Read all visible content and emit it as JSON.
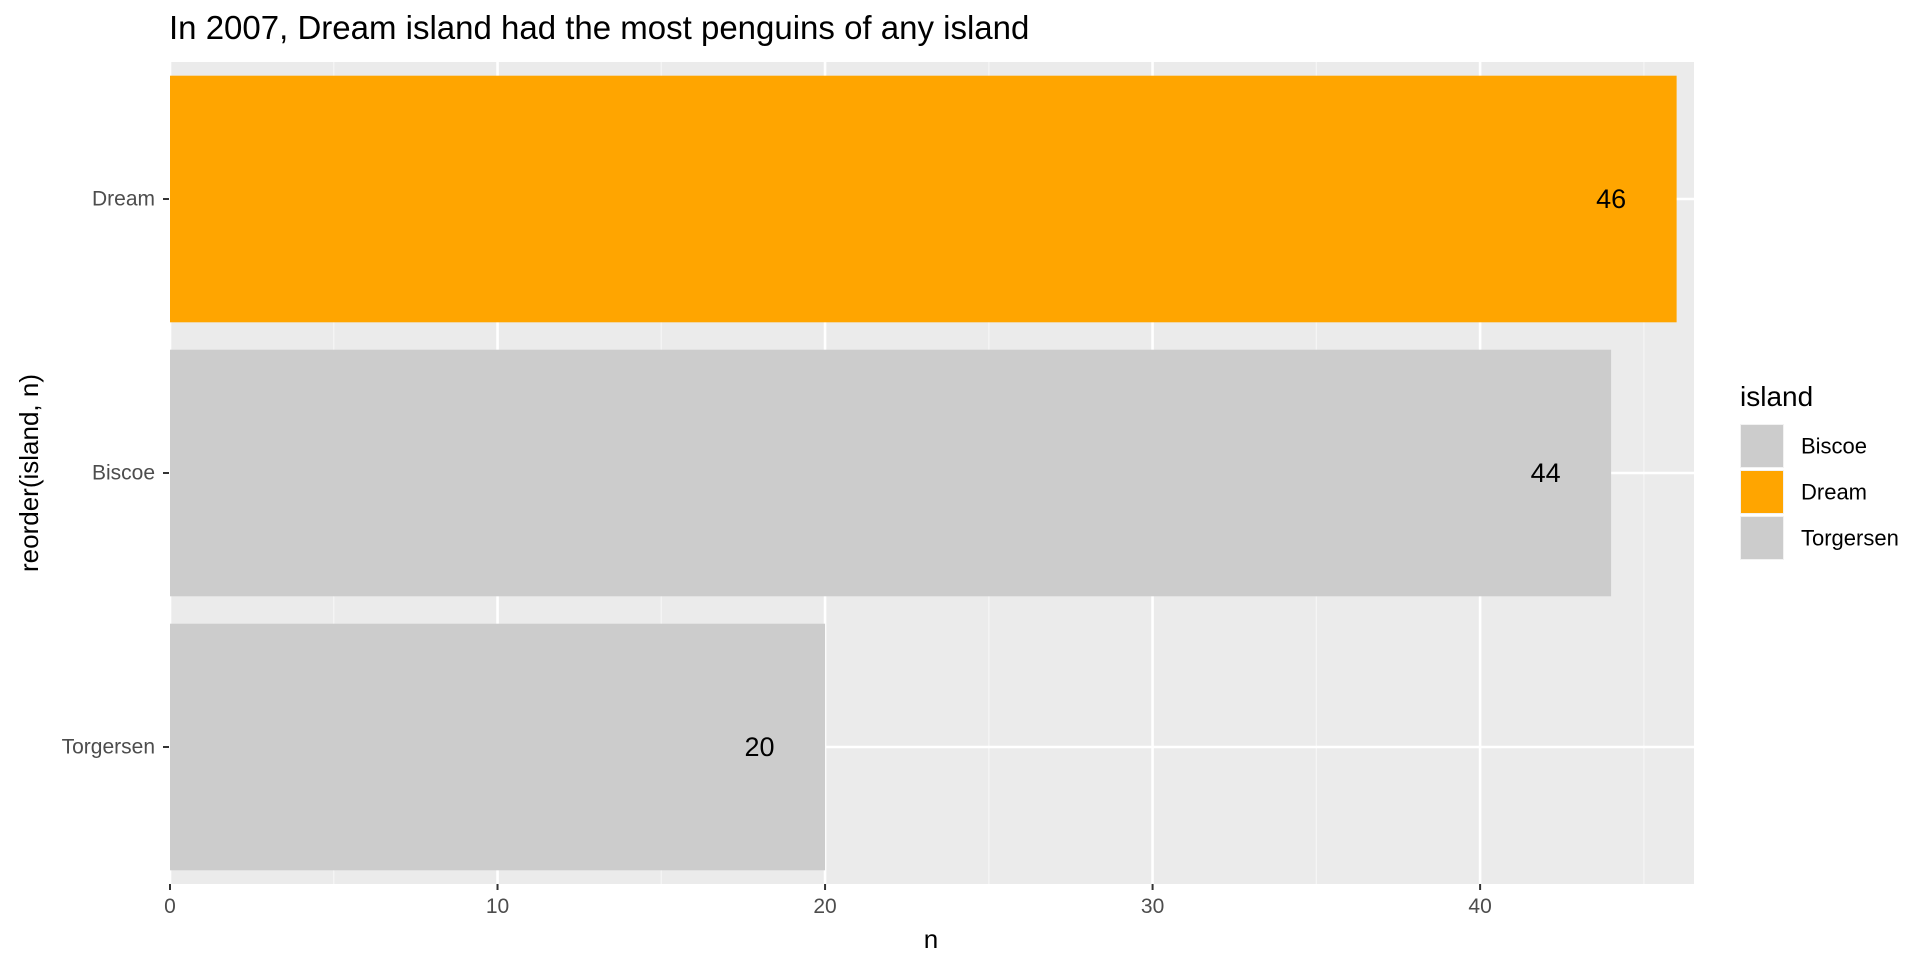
{
  "chart_data": {
    "type": "bar",
    "orientation": "horizontal",
    "title": "In 2007, Dream island had the most penguins of any island",
    "xlabel": "n",
    "ylabel": "reorder(island, n)",
    "categories": [
      "Torgersen",
      "Biscoe",
      "Dream"
    ],
    "values": [
      20,
      44,
      46
    ],
    "bar_labels": [
      "20",
      "44",
      "46"
    ],
    "bar_colors": [
      "#cccccc",
      "#cccccc",
      "#ffa500"
    ],
    "xlim": [
      0,
      46.5
    ],
    "x_ticks": [
      0,
      10,
      20,
      30,
      40
    ],
    "x_tick_labels": [
      "0",
      "10",
      "20",
      "30",
      "40"
    ],
    "grid": true,
    "legend": {
      "title": "island",
      "position": "right",
      "items": [
        {
          "label": "Biscoe",
          "color": "#cccccc"
        },
        {
          "label": "Dream",
          "color": "#ffa500"
        },
        {
          "label": "Torgersen",
          "color": "#cccccc"
        }
      ]
    }
  },
  "colors": {
    "panel_background": "#ebebeb",
    "grid_major": "#ffffff",
    "grid_minor": "#f5f5f5",
    "highlight": "#ffa500",
    "muted": "#cccccc"
  }
}
